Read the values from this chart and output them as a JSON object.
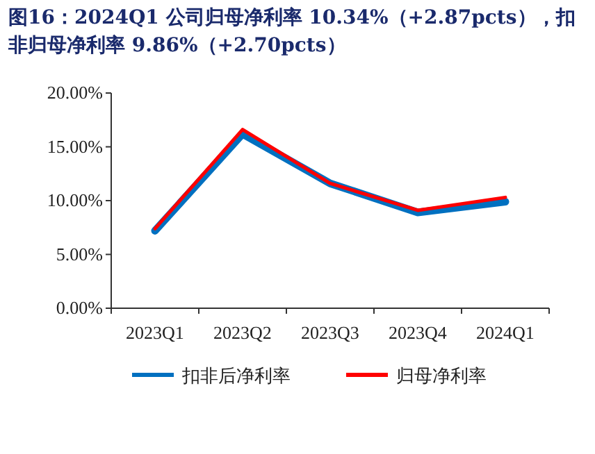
{
  "chart_data": {
    "type": "line",
    "title": "图16：2024Q1 公司归母净利率 10.34%（+2.87pcts），扣非归母净利率 9.86%（+2.70pcts）",
    "categories": [
      "2023Q1",
      "2023Q2",
      "2023Q3",
      "2023Q4",
      "2024Q1"
    ],
    "series": [
      {
        "name": "扣非后净利率",
        "color": "#0070c0",
        "values": [
          7.2,
          16.2,
          11.6,
          8.9,
          9.9
        ]
      },
      {
        "name": "归母净利率",
        "color": "#ff0000",
        "values": [
          7.4,
          16.6,
          11.6,
          9.1,
          10.3
        ]
      }
    ],
    "ylim": [
      0,
      20
    ],
    "yticks": [
      {
        "value": 0,
        "label": "0.00%"
      },
      {
        "value": 5,
        "label": "5.00%"
      },
      {
        "value": 10,
        "label": "10.00%"
      },
      {
        "value": 15,
        "label": "15.00%"
      },
      {
        "value": 20,
        "label": "20.00%"
      }
    ],
    "grid": false,
    "legend": "bottom",
    "marker": "none",
    "line_style": "solid"
  }
}
